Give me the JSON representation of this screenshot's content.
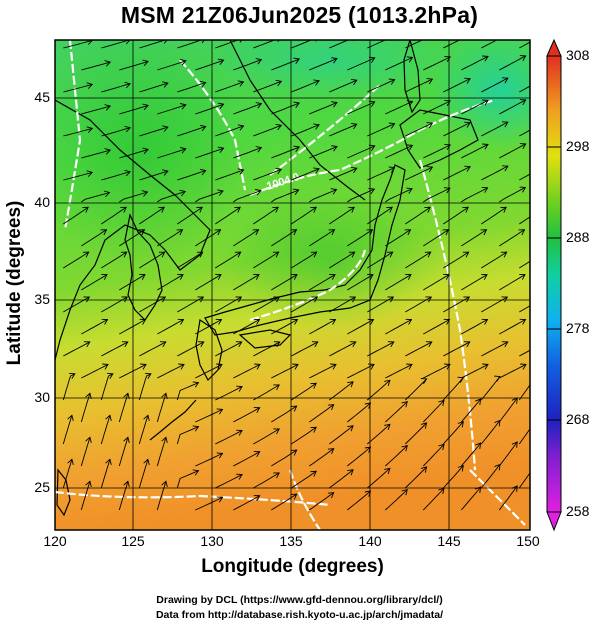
{
  "title": "MSM 21Z06Jun2025 (1013.2hPa)",
  "x_axis": {
    "label": "Longitude (degrees)",
    "ticks": [
      "120",
      "125",
      "130",
      "135",
      "140",
      "145",
      "150"
    ]
  },
  "y_axis": {
    "label": "Latitude  (degrees)",
    "ticks": [
      "25",
      "30",
      "35",
      "40",
      "45"
    ]
  },
  "colorbar": {
    "ticks": [
      "308",
      "298",
      "288",
      "278",
      "268",
      "258"
    ],
    "min": 258,
    "max": 308
  },
  "contour_label": "1004.0",
  "credits": {
    "line1": "Drawing by DCL (https://www.gfd-dennou.org/library/dcl/)",
    "line2": "Data from http://database.rish.kyoto-u.ac.jp/arch/jmadata/"
  },
  "colors": {
    "land_contour": "#000000",
    "isobar": "#ffffff",
    "wind_streamline": "#000000"
  }
}
